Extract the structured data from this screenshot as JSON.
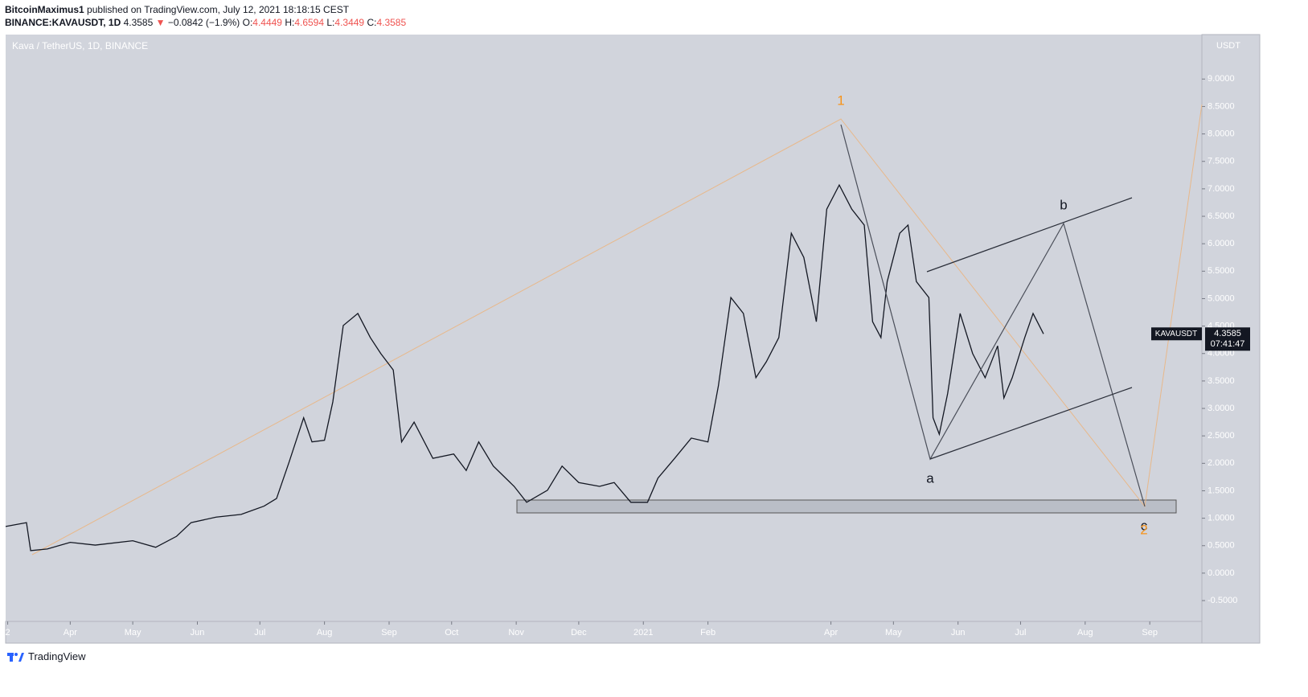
{
  "header": {
    "author": "BitcoinMaximus1",
    "published": "published on TradingView.com, July 12, 2021 18:18:15 CEST",
    "symbol": "BINANCE:KAVAUSDT, 1D",
    "last": "4.3585",
    "arrow": "▼",
    "change": "−0.0842 (−1.9%)",
    "ohlc": [
      {
        "label": "O:",
        "value": "4.4449"
      },
      {
        "label": "H:",
        "value": "4.6594"
      },
      {
        "label": "L:",
        "value": "4.3449"
      },
      {
        "label": "C:",
        "value": "4.3585"
      }
    ]
  },
  "chart_data": {
    "type": "line",
    "title": "Kava / TetherUS, 1D, BINANCE",
    "currency": "USDT",
    "x": [
      0,
      10,
      12,
      20,
      31,
      43,
      61,
      72,
      82,
      89,
      101,
      113,
      124,
      130,
      136,
      143,
      147,
      153,
      157,
      162,
      169,
      175,
      180,
      186,
      190,
      196,
      205,
      215,
      221,
      227,
      234,
      244,
      250,
      260,
      267,
      275,
      285,
      292,
      300,
      308,
      313,
      321,
      329,
      337,
      342,
      348,
      354,
      360,
      365,
      371,
      377,
      383,
      389,
      394,
      400,
      406,
      412,
      416,
      420,
      423,
      429,
      433,
      437,
      443,
      445,
      448,
      452,
      458,
      464,
      470,
      476,
      479,
      483,
      489,
      493,
      498
    ],
    "series": [
      {
        "name": "KAVAUSDT",
        "color": "#131722",
        "values": [
          0.85,
          0.92,
          0.41,
          0.44,
          0.56,
          0.51,
          0.59,
          0.47,
          0.67,
          0.92,
          1.02,
          1.07,
          1.22,
          1.36,
          2.02,
          2.83,
          2.39,
          2.42,
          3.12,
          4.51,
          4.73,
          4.29,
          4.0,
          3.7,
          2.39,
          2.75,
          2.09,
          2.17,
          1.87,
          2.39,
          1.95,
          1.58,
          1.29,
          1.51,
          1.95,
          1.65,
          1.58,
          1.65,
          1.29,
          1.29,
          1.73,
          2.09,
          2.46,
          2.39,
          3.41,
          5.02,
          4.73,
          3.56,
          3.85,
          4.29,
          6.19,
          5.75,
          4.58,
          6.63,
          7.07,
          6.63,
          6.34,
          4.58,
          4.29,
          5.31,
          6.19,
          6.34,
          5.31,
          5.02,
          2.83,
          2.53,
          3.27,
          4.73,
          4.0,
          3.56,
          4.14,
          3.19,
          3.56,
          4.29,
          4.73,
          4.3585
        ]
      }
    ],
    "xlim": [
      0,
      574
    ],
    "ylim": [
      -0.88,
      9.81
    ],
    "xticks": [
      {
        "value": 1,
        "label": "2"
      },
      {
        "value": 31,
        "label": "Apr"
      },
      {
        "value": 61,
        "label": "May"
      },
      {
        "value": 92,
        "label": "Jun"
      },
      {
        "value": 122,
        "label": "Jul"
      },
      {
        "value": 153,
        "label": "Aug"
      },
      {
        "value": 184,
        "label": "Sep"
      },
      {
        "value": 214,
        "label": "Oct"
      },
      {
        "value": 245,
        "label": "Nov"
      },
      {
        "value": 275,
        "label": "Dec"
      },
      {
        "value": 306,
        "label": "2021"
      },
      {
        "value": 337,
        "label": "Feb"
      },
      {
        "value": 396,
        "label": "Apr"
      },
      {
        "value": 426,
        "label": "May"
      },
      {
        "value": 457,
        "label": "Jun"
      },
      {
        "value": 487,
        "label": "Jul"
      },
      {
        "value": 518,
        "label": "Aug"
      },
      {
        "value": 549,
        "label": "Sep"
      }
    ],
    "yticks": [
      {
        "value": -0.5,
        "label": "-0.5000"
      },
      {
        "value": 0,
        "label": "0.0000"
      },
      {
        "value": 0.5,
        "label": "0.5000"
      },
      {
        "value": 1,
        "label": "1.0000"
      },
      {
        "value": 1.5,
        "label": "1.5000"
      },
      {
        "value": 2,
        "label": "2.0000"
      },
      {
        "value": 2.5,
        "label": "2.5000"
      },
      {
        "value": 3,
        "label": "3.0000"
      },
      {
        "value": 3.5,
        "label": "3.5000"
      },
      {
        "value": 4,
        "label": "4.0000"
      },
      {
        "value": 4.5,
        "label": "4.5000"
      },
      {
        "value": 5,
        "label": "5.0000"
      },
      {
        "value": 5.5,
        "label": "5.5000"
      },
      {
        "value": 6,
        "label": "6.0000"
      },
      {
        "value": 6.5,
        "label": "6.5000"
      },
      {
        "value": 7,
        "label": "7.0000"
      },
      {
        "value": 7.5,
        "label": "7.5000"
      },
      {
        "value": 8,
        "label": "8.0000"
      },
      {
        "value": 8.5,
        "label": "8.5000"
      },
      {
        "value": 9,
        "label": "9.0000"
      }
    ],
    "price_tag": {
      "value": 4.3585,
      "label": "4.3585",
      "countdown": "07:41:47"
    },
    "annotations": [
      {
        "text": "1",
        "color": "#f7931a"
      },
      {
        "text": "a",
        "color": "#131722"
      },
      {
        "text": "b",
        "color": "#131722"
      },
      {
        "text": "c",
        "color": "#131722"
      },
      {
        "text": "2",
        "color": "#f7931a"
      }
    ]
  },
  "footer": {
    "brand": "TradingView"
  }
}
